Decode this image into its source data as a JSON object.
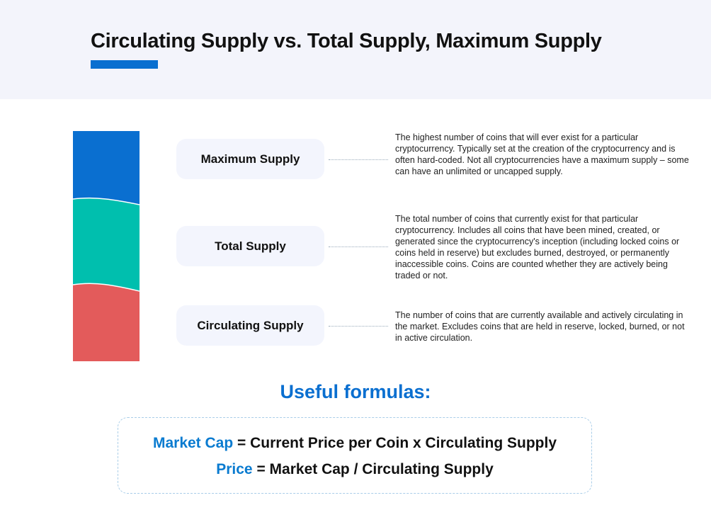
{
  "header": {
    "title": "Circulating Supply vs. Total Supply, Maximum Supply"
  },
  "colors": {
    "accent": "#0a6fd0",
    "maximum": "#0a6fd0",
    "total": "#00bfae",
    "circulating": "#e35b5b",
    "header_bg": "#f3f4fb"
  },
  "items": [
    {
      "label": "Maximum Supply",
      "description": "The highest number of coins that will ever exist for a particular cryptocurrency. Typically set at the creation of the cryptocurrency and is often hard-coded. Not all cryptocurrencies have a maximum supply – some can have an unlimited or uncapped supply."
    },
    {
      "label": "Total Supply",
      "description": "The total number of coins that currently exist for that particular cryptocurrency. Includes all coins that have been mined, created, or generated since the cryptocurrency's inception (including locked coins or coins held in reserve) but excludes burned, destroyed, or permanently inaccessible coins. Coins are counted whether they are actively being traded or not."
    },
    {
      "label": "Circulating Supply",
      "description": "The number of coins that are currently available and actively circulating in the market. Excludes coins that are held in reserve, locked, burned, or not in active circulation."
    }
  ],
  "formulas": {
    "title": "Useful formulas:",
    "lines": [
      {
        "term": "Market Cap",
        "rest": " = Current Price per Coin x Circulating Supply"
      },
      {
        "term": "Price",
        "rest": " = Market Cap / Circulating Supply"
      }
    ]
  }
}
